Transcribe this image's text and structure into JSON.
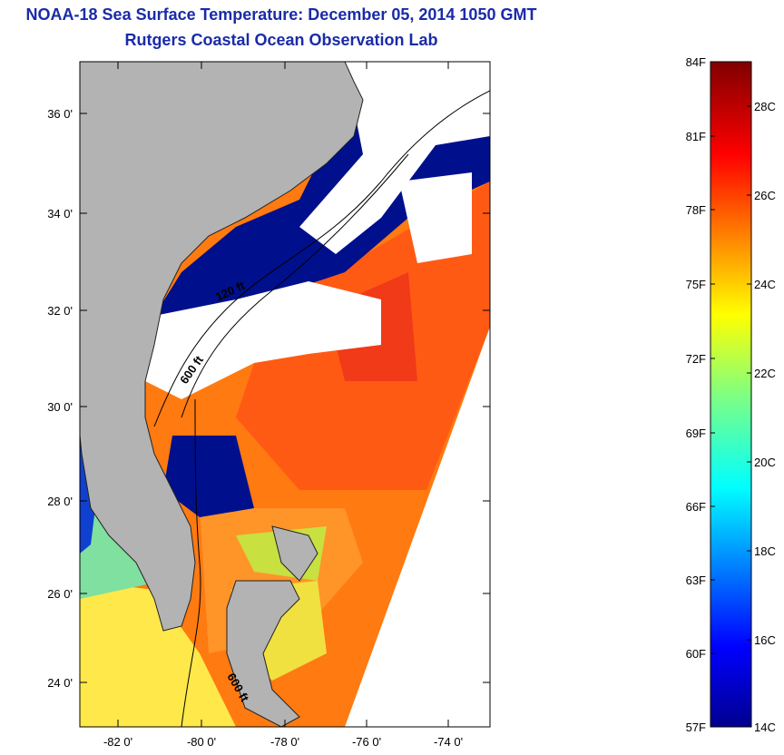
{
  "title": {
    "line1": "NOAA-18 Sea Surface Temperature:  December 05, 2014 1050 GMT",
    "line2": "Rutgers Coastal Ocean Observation Lab"
  },
  "map": {
    "lat_labels": [
      "36 0'",
      "34 0'",
      "32 0'",
      "30 0'",
      "28 0'",
      "26 0'",
      "24 0'"
    ],
    "lon_labels": [
      "-82 0'",
      "-80 0'",
      "-78 0'",
      "-76 0'",
      "-74 0'"
    ],
    "contour_labels": [
      "120 ft",
      "600 ft",
      "600 ft"
    ],
    "colors": {
      "land": "#b3b3b3",
      "cloud": "#ffffff",
      "cold": "#00108c",
      "warm": "#ff6a00"
    }
  },
  "colorbar": {
    "f_labels": [
      "84F",
      "81F",
      "78F",
      "75F",
      "72F",
      "69F",
      "66F",
      "63F",
      "60F",
      "57F"
    ],
    "c_labels": [
      "28C",
      "26C",
      "24C",
      "22C",
      "20C",
      "18C",
      "16C",
      "14C"
    ],
    "colormap": "jet",
    "range_f": [
      57,
      84
    ]
  }
}
